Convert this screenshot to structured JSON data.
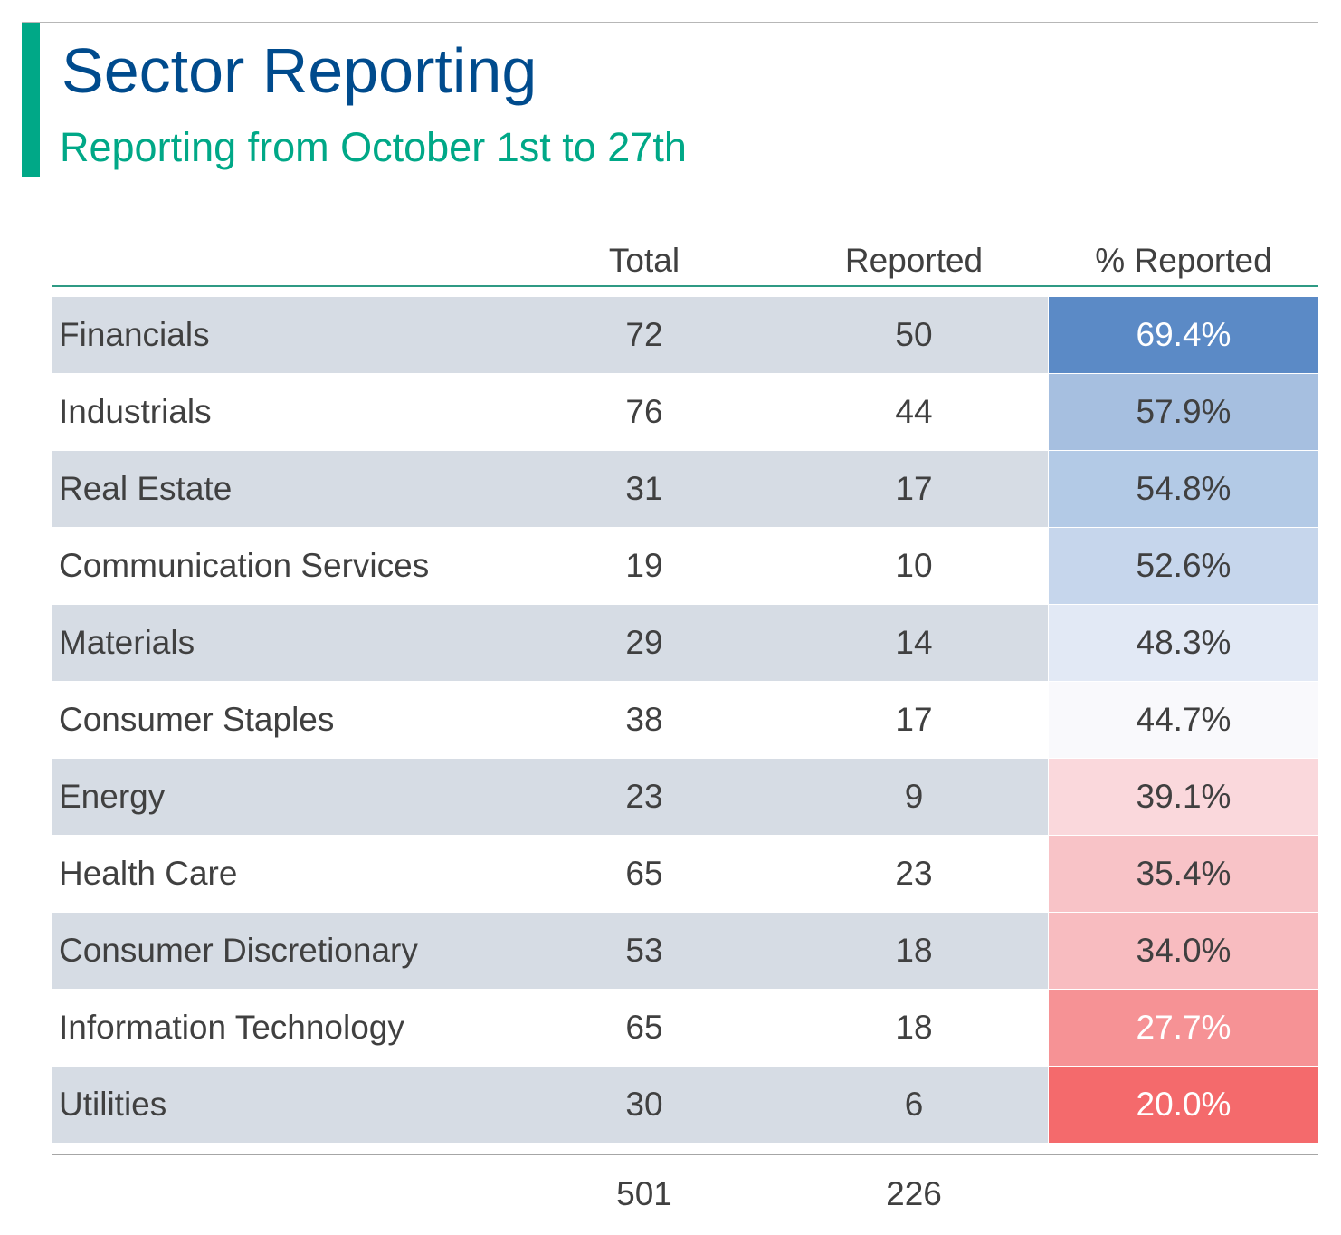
{
  "header": {
    "title": "Sector Reporting",
    "subtitle": "Reporting from October 1st to 27th"
  },
  "colors": {
    "accent": "#00a887",
    "title": "#004b8d",
    "row_shade": "#d6dce4",
    "text": "#404040"
  },
  "chart_data": {
    "type": "table",
    "title": "Sector Reporting",
    "subtitle": "Reporting from October 1st to 27th",
    "columns": [
      "",
      "Total",
      "Reported",
      "% Reported"
    ],
    "rows": [
      {
        "sector": "Financials",
        "total": "72",
        "reported": "50",
        "pct": "69.4%",
        "pct_value": 69.4,
        "fill": "#5b8ac6",
        "text_color": "#ffffff",
        "shaded": true
      },
      {
        "sector": "Industrials",
        "total": "76",
        "reported": "44",
        "pct": "57.9%",
        "pct_value": 57.9,
        "fill": "#a6bfe0",
        "text_color": "#404040",
        "shaded": false
      },
      {
        "sector": "Real Estate",
        "total": "31",
        "reported": "17",
        "pct": "54.8%",
        "pct_value": 54.8,
        "fill": "#b3cae6",
        "text_color": "#404040",
        "shaded": true
      },
      {
        "sector": "Communication Services",
        "total": "19",
        "reported": "10",
        "pct": "52.6%",
        "pct_value": 52.6,
        "fill": "#c6d6ec",
        "text_color": "#404040",
        "shaded": false
      },
      {
        "sector": "Materials",
        "total": "29",
        "reported": "14",
        "pct": "48.3%",
        "pct_value": 48.3,
        "fill": "#e2e9f5",
        "text_color": "#404040",
        "shaded": true
      },
      {
        "sector": "Consumer Staples",
        "total": "38",
        "reported": "17",
        "pct": "44.7%",
        "pct_value": 44.7,
        "fill": "#f9f9fc",
        "text_color": "#404040",
        "shaded": false
      },
      {
        "sector": "Energy",
        "total": "23",
        "reported": "9",
        "pct": "39.1%",
        "pct_value": 39.1,
        "fill": "#fad8dc",
        "text_color": "#404040",
        "shaded": true
      },
      {
        "sector": "Health Care",
        "total": "65",
        "reported": "23",
        "pct": "35.4%",
        "pct_value": 35.4,
        "fill": "#f8c3c7",
        "text_color": "#404040",
        "shaded": false
      },
      {
        "sector": "Consumer Discretionary",
        "total": "53",
        "reported": "18",
        "pct": "34.0%",
        "pct_value": 34.0,
        "fill": "#f8bcc0",
        "text_color": "#404040",
        "shaded": true
      },
      {
        "sector": "Information Technology",
        "total": "65",
        "reported": "18",
        "pct": "27.7%",
        "pct_value": 27.7,
        "fill": "#f69295",
        "text_color": "#ffffff",
        "shaded": false
      },
      {
        "sector": "Utilities",
        "total": "30",
        "reported": "6",
        "pct": "20.0%",
        "pct_value": 20.0,
        "fill": "#f46a6c",
        "text_color": "#ffffff",
        "shaded": true
      }
    ],
    "totals": {
      "total": "501",
      "reported": "226"
    }
  }
}
